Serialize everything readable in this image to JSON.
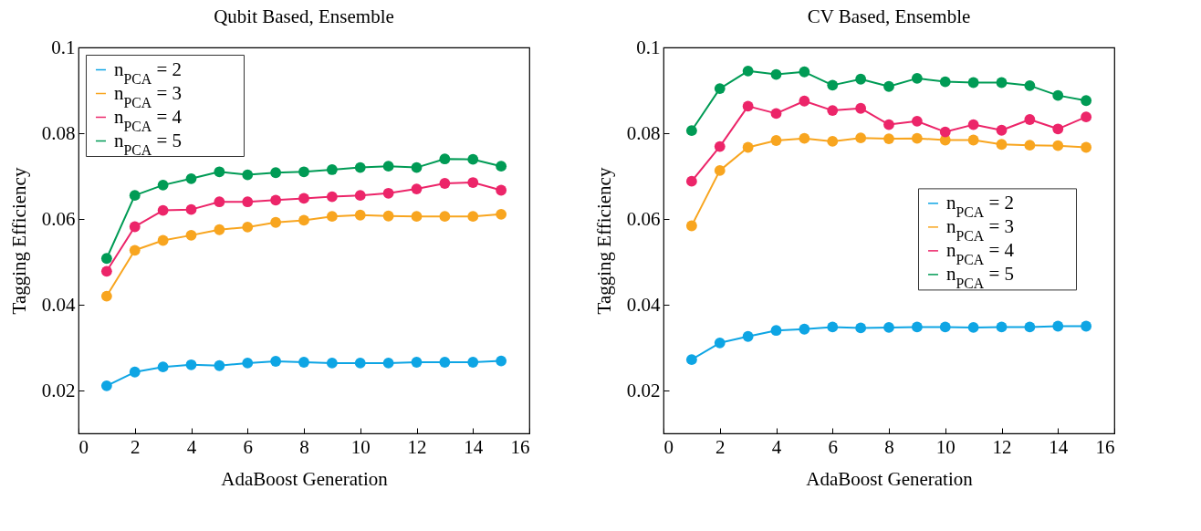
{
  "chart_data": [
    {
      "type": "line",
      "title": "Qubit Based, Ensemble",
      "xlabel": "AdaBoost Generation",
      "ylabel": "Tagging Efficiency",
      "x": [
        1,
        2,
        3,
        4,
        5,
        6,
        7,
        8,
        9,
        10,
        11,
        12,
        13,
        14,
        15
      ],
      "xlim": [
        0,
        16
      ],
      "xticks": [
        0,
        2,
        4,
        6,
        8,
        10,
        12,
        14,
        16
      ],
      "ylim": [
        0.01,
        0.1
      ],
      "yticks": [
        0.02,
        0.04,
        0.06,
        0.08,
        0.1
      ],
      "grid": false,
      "legend": "top left",
      "marker": "circle",
      "line_style": "solid",
      "series": [
        {
          "name": "n$_{PCA}$ = 2",
          "color": "#0ea5e4",
          "values": [
            0.0211,
            0.0243,
            0.0255,
            0.026,
            0.0258,
            0.0264,
            0.0268,
            0.0266,
            0.0264,
            0.0264,
            0.0264,
            0.0266,
            0.0266,
            0.0266,
            0.0269
          ]
        },
        {
          "name": "n$_{PCA}$ = 3",
          "color": "#f8a51f",
          "values": [
            0.042,
            0.0527,
            0.055,
            0.0562,
            0.0575,
            0.0581,
            0.0592,
            0.0597,
            0.0606,
            0.0609,
            0.0607,
            0.0606,
            0.0606,
            0.0606,
            0.0611
          ]
        },
        {
          "name": "n$_{PCA}$ = 4",
          "color": "#ec2569",
          "values": [
            0.0478,
            0.0582,
            0.062,
            0.0622,
            0.064,
            0.064,
            0.0644,
            0.0648,
            0.0652,
            0.0655,
            0.066,
            0.067,
            0.0683,
            0.0685,
            0.0667
          ]
        },
        {
          "name": "n$_{PCA}$ = 5",
          "color": "#009b55",
          "values": [
            0.0508,
            0.0655,
            0.0679,
            0.0694,
            0.071,
            0.0703,
            0.0708,
            0.071,
            0.0715,
            0.072,
            0.0723,
            0.072,
            0.074,
            0.0739,
            0.0723
          ]
        }
      ]
    },
    {
      "type": "line",
      "title": "CV Based, Ensemble",
      "xlabel": "AdaBoost Generation",
      "ylabel": "Tagging Efficiency",
      "x": [
        1,
        2,
        3,
        4,
        5,
        6,
        7,
        8,
        9,
        10,
        11,
        12,
        13,
        14,
        15
      ],
      "xlim": [
        0,
        16
      ],
      "xticks": [
        0,
        2,
        4,
        6,
        8,
        10,
        12,
        14,
        16
      ],
      "ylim": [
        0.01,
        0.1
      ],
      "yticks": [
        0.02,
        0.04,
        0.06,
        0.08,
        0.1
      ],
      "grid": false,
      "legend": "right",
      "marker": "circle",
      "line_style": "solid",
      "series": [
        {
          "name": "n$_{PCA}$ = 2",
          "color": "#0ea5e4",
          "values": [
            0.0272,
            0.0311,
            0.0326,
            0.034,
            0.0343,
            0.0348,
            0.0346,
            0.0347,
            0.0348,
            0.0348,
            0.0347,
            0.0348,
            0.0348,
            0.035,
            0.035
          ]
        },
        {
          "name": "n$_{PCA}$ = 3",
          "color": "#f8a51f",
          "values": [
            0.0584,
            0.0713,
            0.0767,
            0.0783,
            0.0788,
            0.0781,
            0.0789,
            0.0787,
            0.0788,
            0.0784,
            0.0784,
            0.0774,
            0.0772,
            0.0771,
            0.0767
          ]
        },
        {
          "name": "n$_{PCA}$ = 4",
          "color": "#ec2569",
          "values": [
            0.0688,
            0.0769,
            0.0863,
            0.0846,
            0.0875,
            0.0853,
            0.0858,
            0.082,
            0.0828,
            0.0803,
            0.082,
            0.0807,
            0.0832,
            0.081,
            0.0838
          ]
        },
        {
          "name": "n$_{PCA}$ = 5",
          "color": "#009b55",
          "values": [
            0.0806,
            0.0904,
            0.0945,
            0.0937,
            0.0943,
            0.0912,
            0.0926,
            0.0909,
            0.0928,
            0.092,
            0.0918,
            0.0918,
            0.0911,
            0.0888,
            0.0876
          ]
        }
      ]
    }
  ]
}
